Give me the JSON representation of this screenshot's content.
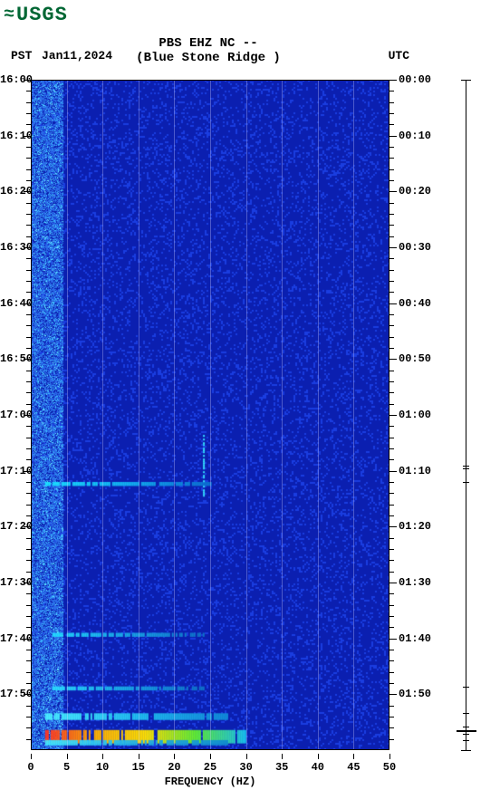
{
  "logo": {
    "wave": "≈",
    "text": "USGS",
    "color": "#006633"
  },
  "header": {
    "line1": "PBS EHZ NC --",
    "line2": "(Blue Stone Ridge )",
    "pst_label": "PST",
    "date": "Jan11,2024",
    "utc_label": "UTC"
  },
  "chart": {
    "type": "spectrogram",
    "x": {
      "label": "FREQUENCY (HZ)",
      "min": 0,
      "max": 50,
      "step": 5,
      "ticks": [
        0,
        5,
        10,
        15,
        20,
        25,
        30,
        35,
        40,
        45,
        50
      ],
      "gridlines": [
        5,
        10,
        15,
        20,
        25,
        30,
        35,
        40,
        45
      ]
    },
    "y_left": {
      "major": [
        "16:00",
        "16:10",
        "16:20",
        "16:30",
        "16:40",
        "16:50",
        "17:00",
        "17:10",
        "17:20",
        "17:30",
        "17:40",
        "17:50"
      ],
      "minor_per_major": 4
    },
    "y_right": {
      "major": [
        "00:00",
        "00:10",
        "00:20",
        "00:30",
        "00:40",
        "00:50",
        "01:00",
        "01:10",
        "01:20",
        "01:30",
        "01:40",
        "01:50"
      ]
    },
    "bg_color": "#0b1fb0",
    "noise_color": "#1a3de0",
    "low_freq_color": "#2a6be8",
    "bands": [
      {
        "t": 0.6,
        "h": 0.006,
        "f0": 0.04,
        "f1": 0.5,
        "colors": [
          "#19e0ff",
          "#12b0ef",
          "#0b6ed0"
        ]
      },
      {
        "t": 0.825,
        "h": 0.006,
        "f0": 0.06,
        "f1": 0.48,
        "colors": [
          "#22ddff",
          "#18a8e6",
          "#0e70c8"
        ]
      },
      {
        "t": 0.905,
        "h": 0.006,
        "f0": 0.06,
        "f1": 0.48,
        "colors": [
          "#2ae0ff",
          "#18a8e6",
          "#0e70c8"
        ]
      },
      {
        "t": 0.945,
        "h": 0.01,
        "f0": 0.04,
        "f1": 0.55,
        "colors": [
          "#4af0ff",
          "#20c0f0",
          "#108ad8"
        ]
      },
      {
        "t": 0.97,
        "h": 0.02,
        "f0": 0.04,
        "f1": 0.6,
        "colors": [
          "#ff3020",
          "#ffb000",
          "#ffe000",
          "#60f030",
          "#18c0f0"
        ]
      },
      {
        "t": 0.985,
        "h": 0.008,
        "f0": 0.04,
        "f1": 0.55,
        "colors": [
          "#40e8ff",
          "#20b0e8",
          "#108ad0"
        ]
      }
    ],
    "vert_streak": {
      "f": 0.48,
      "t0": 0.53,
      "t1": 0.62,
      "color": "#35e0ff"
    }
  },
  "side_trace": {
    "marks": [
      0.575,
      0.58,
      0.6,
      0.905,
      0.945,
      0.965,
      0.97,
      0.975,
      0.985
    ],
    "big_mark": 0.97
  }
}
